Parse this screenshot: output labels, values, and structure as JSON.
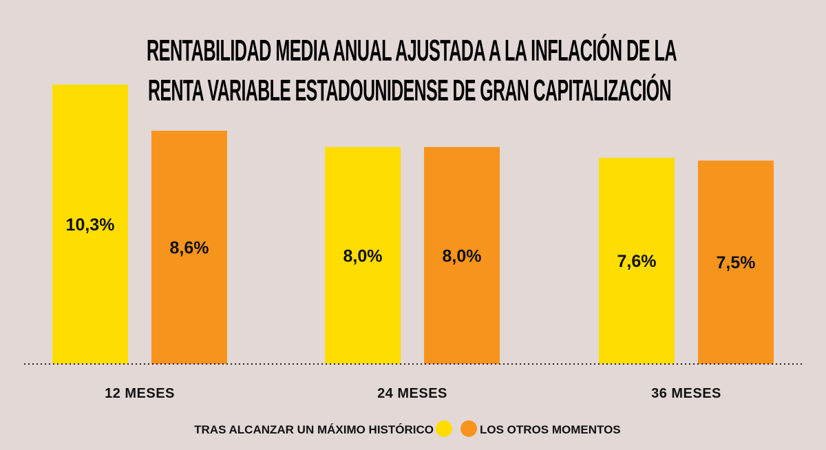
{
  "chart_data": {
    "type": "bar",
    "title": [
      "RENTABILIDAD MEDIA ANUAL AJUSTADA A LA INFLACIÓN DE LA",
      "RENTA VARIABLE ESTADOUNIDENSE DE GRAN CAPITALIZACIÓN"
    ],
    "categories": [
      "12 MESES",
      "24 MESES",
      "36 MESES"
    ],
    "series": [
      {
        "name": "TRAS ALCANZAR UN MÁXIMO HISTÓRICO",
        "values": [
          10.3,
          8.0,
          7.6
        ],
        "labels": [
          "10,3%",
          "8,0%",
          "7,6%"
        ],
        "color": "#ffdd00"
      },
      {
        "name": "LOS OTROS MOMENTOS",
        "values": [
          8.6,
          8.0,
          7.5
        ],
        "labels": [
          "8,6%",
          "8,0%",
          "7,5%"
        ],
        "color": "#f7941d"
      }
    ],
    "ylim": [
      0,
      10.3
    ],
    "grid": false,
    "legend_position": "bottom",
    "baseline": "dotted"
  }
}
